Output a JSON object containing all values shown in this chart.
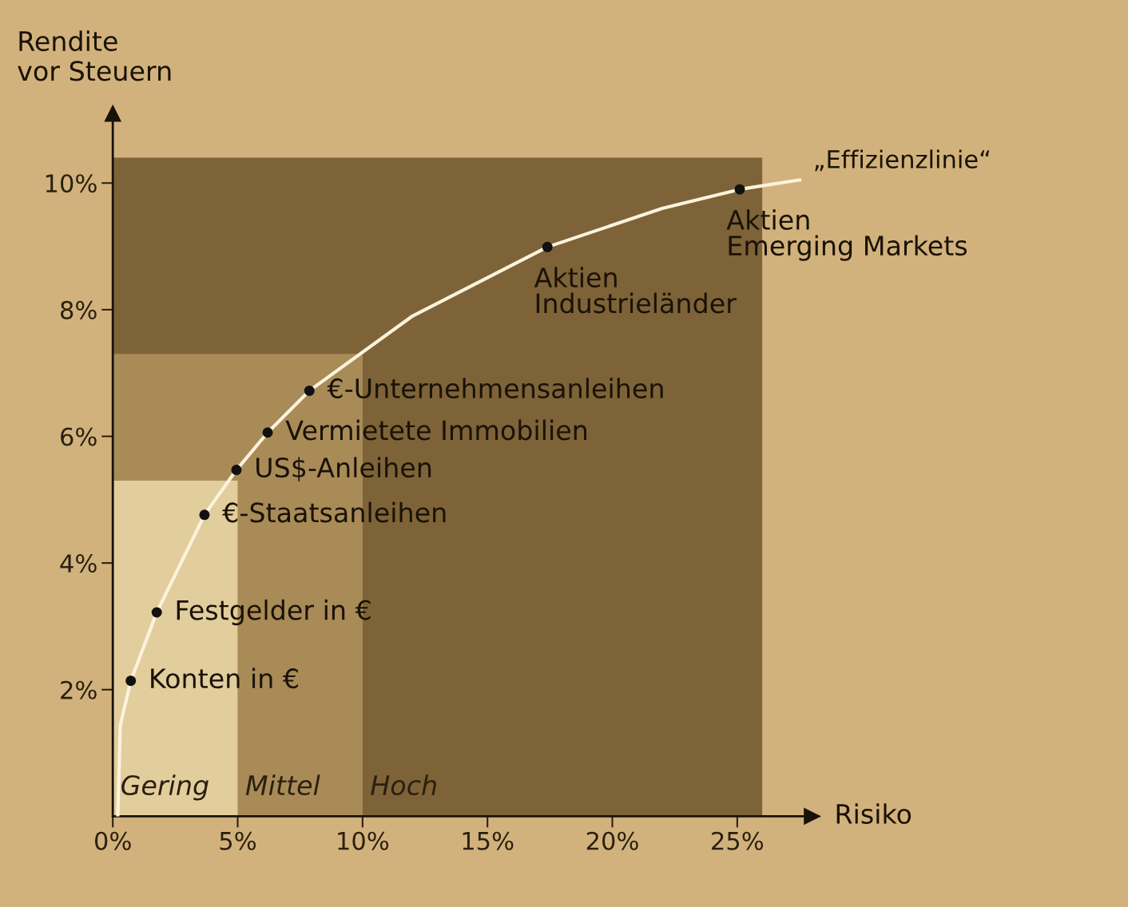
{
  "chart_data": {
    "type": "scatter",
    "xlabel": "Risiko",
    "ylabel": "Rendite\nvor Steuern",
    "xlim": [
      0,
      28
    ],
    "ylim": [
      0,
      11.1
    ],
    "xticks": [
      {
        "value": 0,
        "label": "0%"
      },
      {
        "value": 5,
        "label": "5%"
      },
      {
        "value": 10,
        "label": "10%"
      },
      {
        "value": 15,
        "label": "15%"
      },
      {
        "value": 20,
        "label": "20%"
      },
      {
        "value": 25,
        "label": "25%"
      }
    ],
    "yticks": [
      {
        "value": 2,
        "label": "2%"
      },
      {
        "value": 4,
        "label": "4%"
      },
      {
        "value": 6,
        "label": "6%"
      },
      {
        "value": 8,
        "label": "8%"
      },
      {
        "value": 10,
        "label": "10%"
      }
    ],
    "grid": false,
    "legend": false,
    "series": [
      {
        "type": "area",
        "name": "Gering",
        "color": "#e2cd9c",
        "x": [
          0,
          5,
          5,
          10,
          10,
          26
        ],
        "values": [
          5.3,
          5.3,
          0,
          0,
          0,
          0
        ]
      },
      {
        "type": "area",
        "name": "Mittel",
        "color": "#a98b58",
        "x": [
          0,
          5,
          5,
          10,
          10,
          26
        ],
        "values": [
          2.0,
          2.0,
          7.3,
          7.3,
          0,
          0
        ]
      },
      {
        "type": "area",
        "name": "Hoch",
        "color": "#7d6337",
        "x": [
          0,
          5,
          5,
          10,
          10,
          26
        ],
        "values": [
          3.1,
          3.1,
          3.1,
          3.1,
          10.4,
          10.4
        ]
      },
      {
        "type": "line",
        "name": "„Effizienzlinie“",
        "color": "#fbf3dc",
        "marker": "none",
        "x": [
          0.2,
          0.3,
          0.72,
          1.76,
          3.67,
          4.95,
          6.2,
          7.87,
          12,
          17.4,
          22,
          25.1,
          27.5
        ],
        "values": [
          0,
          1.44,
          2.14,
          3.22,
          4.76,
          5.47,
          6.06,
          6.72,
          7.9,
          8.99,
          9.6,
          9.9,
          10.05
        ]
      },
      {
        "color": "#111111",
        "marker": "circle",
        "x": [
          0.72,
          1.76,
          3.67,
          4.95,
          6.2,
          7.87,
          17.4,
          25.1
        ],
        "values": [
          2.14,
          3.22,
          4.76,
          5.47,
          6.06,
          6.72,
          8.99,
          9.9
        ]
      }
    ],
    "stacked": true,
    "annotations": [
      {
        "text": "Konten in €",
        "x": 0.72,
        "y": 2.14
      },
      {
        "text": "Festgelder in €",
        "x": 1.76,
        "y": 3.22
      },
      {
        "text": "€-Staatsanleihen",
        "x": 3.67,
        "y": 4.76
      },
      {
        "text": "US$-Anleihen",
        "x": 4.95,
        "y": 5.47
      },
      {
        "text": "Vermietete Immobilien",
        "x": 6.2,
        "y": 6.06
      },
      {
        "text": "€-Unternehmensanleihen",
        "x": 7.87,
        "y": 6.72
      },
      {
        "text": "Aktien\nIndustrieländer",
        "x": 17.4,
        "y": 8.99
      },
      {
        "text": "Aktien\nEmerging Markets",
        "x": 25.1,
        "y": 9.9
      }
    ]
  }
}
